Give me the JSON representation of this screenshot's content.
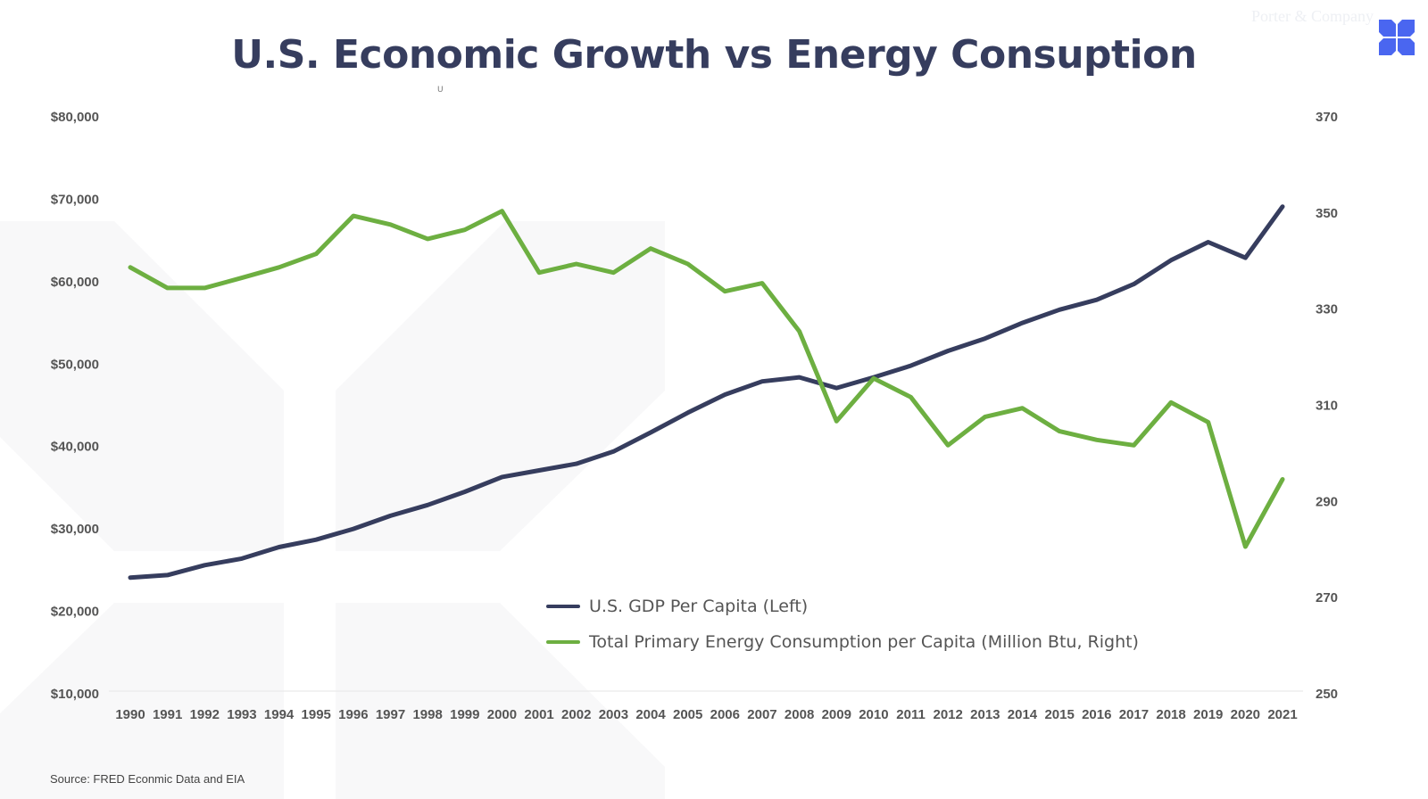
{
  "title": "U.S. Economic Growth vs Energy Consuption",
  "stray_mark": "U",
  "brand": {
    "name": "Porter & Company",
    "logo_icon": "x-cross-logo-icon",
    "logo_color": "#4a66f0"
  },
  "source": "Source: FRED Econmic Data and EIA",
  "colors": {
    "gdp": "#363d5e",
    "energy": "#6daf41",
    "tick_text": "#555555",
    "watermark": "#f8f8f9"
  },
  "chart_data": {
    "type": "line",
    "title": "U.S. Economic Growth vs Energy Consuption",
    "xlabel": "",
    "ylabel_left": "",
    "ylabel_right": "",
    "x": [
      1990,
      1991,
      1992,
      1993,
      1994,
      1995,
      1996,
      1997,
      1998,
      1999,
      2000,
      2001,
      2002,
      2003,
      2004,
      2005,
      2006,
      2007,
      2008,
      2009,
      2010,
      2011,
      2012,
      2013,
      2014,
      2015,
      2016,
      2017,
      2018,
      2019,
      2020,
      2021
    ],
    "x_tick_labels": [
      "1990",
      "1991",
      "1992",
      "1993",
      "1994",
      "1995",
      "1996",
      "1997",
      "1998",
      "1999",
      "2000",
      "2001",
      "2002",
      "2003",
      "2004",
      "2005",
      "2006",
      "2007",
      "2008",
      "2009",
      "2010",
      "2011",
      "2012",
      "2013",
      "2014",
      "2015",
      "2016",
      "2017",
      "2018",
      "2019",
      "2020",
      "2021"
    ],
    "left_axis": {
      "range": [
        10000,
        80000
      ],
      "ticks": [
        80000,
        70000,
        60000,
        50000,
        40000,
        30000,
        20000,
        10000
      ],
      "tick_labels": [
        "$80,000",
        "$70,000",
        "$60,000",
        "$50,000",
        "$40,000",
        "$30,000",
        "$20,000",
        "$10,000"
      ]
    },
    "right_axis": {
      "range": [
        250,
        370
      ],
      "ticks": [
        370,
        350,
        330,
        310,
        290,
        270,
        250
      ],
      "tick_labels": [
        "370",
        "350",
        "330",
        "310",
        "290",
        "270",
        "250"
      ]
    },
    "grid": false,
    "legend_position": "bottom-center",
    "series": [
      {
        "name": "U.S. GDP Per Capita (Left)",
        "axis": "left",
        "color": "#363d5e",
        "values": [
          24100,
          24400,
          25600,
          26400,
          27800,
          28700,
          30000,
          31600,
          32900,
          34500,
          36300,
          37100,
          37900,
          39400,
          41700,
          44100,
          46300,
          47900,
          48400,
          47100,
          48400,
          49800,
          51600,
          53100,
          55000,
          56600,
          57800,
          59700,
          62600,
          64800,
          62900,
          69100
        ]
      },
      {
        "name": "Total Primary Energy Consumption per Capita (Million Btu, Right)",
        "axis": "right",
        "color": "#6daf41",
        "values": [
          338.7,
          334.4,
          334.4,
          336.5,
          338.7,
          341.5,
          349.4,
          347.6,
          344.6,
          346.5,
          350.4,
          337.6,
          339.4,
          337.6,
          342.6,
          339.4,
          333.7,
          335.4,
          325.4,
          306.7,
          315.6,
          311.7,
          301.7,
          307.6,
          309.4,
          304.6,
          302.8,
          301.7,
          310.6,
          306.5,
          280.6,
          294.6
        ]
      }
    ]
  }
}
